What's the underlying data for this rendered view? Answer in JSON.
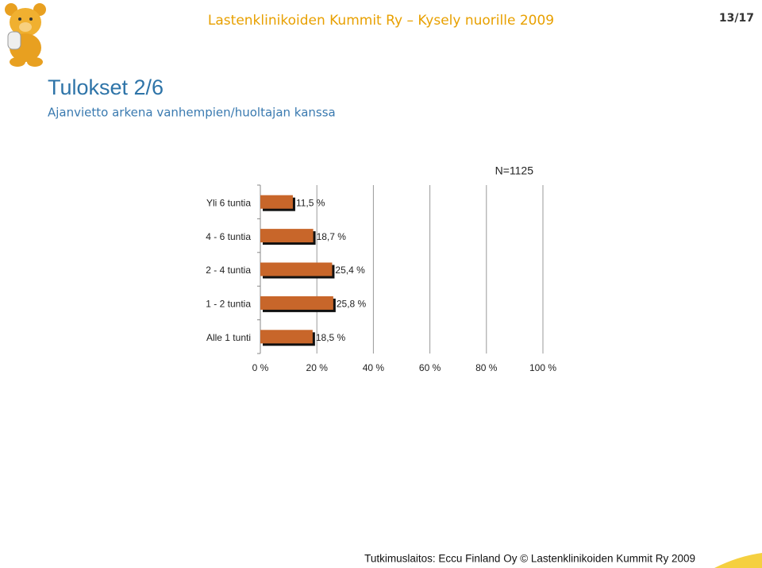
{
  "slide": {
    "header": "Lastenklinikoiden Kummit Ry – Kysely nuorille 2009",
    "page": "13/17",
    "title": "Tulokset 2/6",
    "subtitle": "Ajanvietto arkena vanhempien/huoltajan kanssa",
    "footer": "Tutkimuslaitos: Eccu Finland Oy © Lastenklinikoiden Kummit Ry 2009"
  },
  "chart_data": {
    "type": "bar",
    "orientation": "horizontal",
    "annotation": "N=1125",
    "categories": [
      "Yli 6 tuntia",
      "4 - 6 tuntia",
      "2 - 4 tuntia",
      "1 - 2 tuntia",
      "Alle 1 tunti"
    ],
    "values": [
      11.5,
      18.7,
      25.4,
      25.8,
      18.5
    ],
    "value_labels": [
      "11,5 %",
      "18,7 %",
      "25,4 %",
      "25,8 %",
      "18,5 %"
    ],
    "color": "#c8662a",
    "xlim": [
      0,
      100
    ],
    "xticks": [
      {
        "value": 0,
        "label": "0 %"
      },
      {
        "value": 20,
        "label": "20 %"
      },
      {
        "value": 40,
        "label": "40 %"
      },
      {
        "value": 60,
        "label": "60 %"
      },
      {
        "value": 80,
        "label": "80 %"
      },
      {
        "value": 100,
        "label": "100 %"
      }
    ],
    "grid": true
  }
}
